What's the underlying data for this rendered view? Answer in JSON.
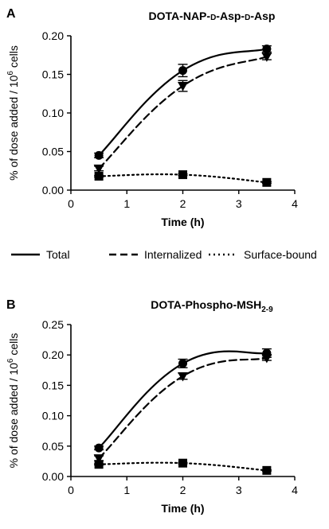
{
  "legend": {
    "items": [
      {
        "label": "Total",
        "dash": "solid"
      },
      {
        "label": "Internalized",
        "dash": "dashed"
      },
      {
        "label": "Surface-bound",
        "dash": "dotted"
      }
    ]
  },
  "chart_data": [
    {
      "type": "line",
      "panel_label": "A",
      "title": "DOTA-NAP-D-Asp-D-Asp",
      "title_parts": [
        "DOTA-NAP-",
        "D",
        "-Asp-",
        "D",
        "-Asp"
      ],
      "xlabel": "Time (h)",
      "ylabel": "% of dose added / 10^6 cells",
      "xlim": [
        0,
        4
      ],
      "ylim": [
        0,
        0.2
      ],
      "xticks": [
        "0",
        "1",
        "2",
        "3",
        "4"
      ],
      "yticks": [
        "0.00",
        "0.05",
        "0.10",
        "0.15",
        "0.20"
      ],
      "series": [
        {
          "name": "Total",
          "marker": "circle",
          "dash": "solid",
          "x": [
            0.5,
            2,
            3.5
          ],
          "y": [
            0.045,
            0.155,
            0.183
          ],
          "err": [
            0.003,
            0.008,
            0.004
          ]
        },
        {
          "name": "Internalized",
          "marker": "triangle-down",
          "dash": "dashed",
          "x": [
            0.5,
            2,
            3.5
          ],
          "y": [
            0.028,
            0.135,
            0.173
          ],
          "err": [
            0.003,
            0.007,
            0.004
          ]
        },
        {
          "name": "Surface-bound",
          "marker": "square",
          "dash": "dotted",
          "x": [
            0.5,
            2,
            3.5
          ],
          "y": [
            0.018,
            0.02,
            0.01
          ],
          "err": [
            0.001,
            0.001,
            0.001
          ]
        }
      ]
    },
    {
      "type": "line",
      "panel_label": "B",
      "title": "DOTA-Phospho-MSH2-9",
      "title_parts": [
        "DOTA-Phospho-MSH",
        "2-9"
      ],
      "xlabel": "Time (h)",
      "ylabel": "% of dose added / 10^6 cells",
      "xlim": [
        0,
        4
      ],
      "ylim": [
        0,
        0.25
      ],
      "xticks": [
        "0",
        "1",
        "2",
        "3",
        "4"
      ],
      "yticks": [
        "0.00",
        "0.05",
        "0.10",
        "0.15",
        "0.20",
        "0.25"
      ],
      "series": [
        {
          "name": "Total",
          "marker": "circle",
          "dash": "solid",
          "x": [
            0.5,
            2,
            3.5
          ],
          "y": [
            0.047,
            0.186,
            0.203
          ],
          "err": [
            0.003,
            0.007,
            0.007
          ]
        },
        {
          "name": "Internalized",
          "marker": "triangle-down",
          "dash": "dashed",
          "x": [
            0.5,
            2,
            3.5
          ],
          "y": [
            0.03,
            0.165,
            0.195
          ],
          "err": [
            0.004,
            0.005,
            0.004
          ]
        },
        {
          "name": "Surface-bound",
          "marker": "square",
          "dash": "dotted",
          "x": [
            0.5,
            2,
            3.5
          ],
          "y": [
            0.02,
            0.022,
            0.01
          ],
          "err": [
            0.001,
            0.001,
            0.001
          ]
        }
      ]
    }
  ]
}
